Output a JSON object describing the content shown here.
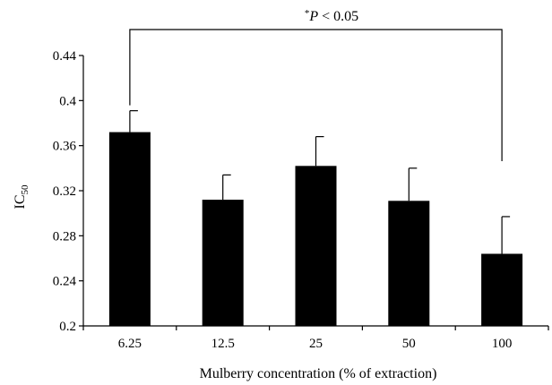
{
  "chart_data": {
    "type": "bar",
    "categories": [
      "6.25",
      "12.5",
      "25",
      "50",
      "100"
    ],
    "values": [
      0.372,
      0.312,
      0.342,
      0.311,
      0.264
    ],
    "errors": [
      0.019,
      0.022,
      0.026,
      0.029,
      0.033
    ],
    "xlabel": "Mulberry concentration (% of extraction)",
    "ylabel_main": "IC",
    "ylabel_sub": "50",
    "ylim": [
      0.2,
      0.44
    ],
    "yticks": [
      "0.2",
      "0.24",
      "0.28",
      "0.32",
      "0.36",
      "0.4",
      "0.44"
    ],
    "grid": false,
    "bar_color": "#000000",
    "annotation": {
      "star": "*",
      "p": "P",
      "rest": " < 0.05",
      "from_category": "6.25",
      "to_category": "100"
    }
  }
}
